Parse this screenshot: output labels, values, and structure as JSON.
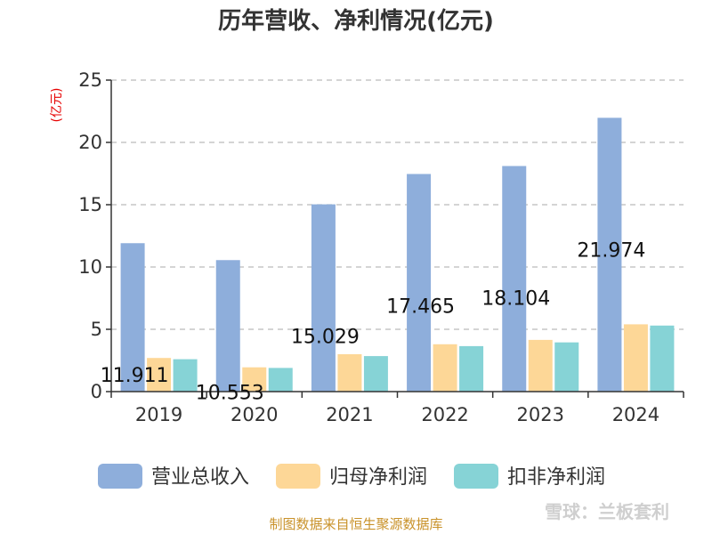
{
  "chart_data": {
    "type": "bar",
    "title": "历年营收、净利情况(亿元)",
    "ylabel": "(亿元)",
    "categories": [
      "2019",
      "2020",
      "2021",
      "2022",
      "2023",
      "2024"
    ],
    "yticks": [
      "0",
      "5",
      "10",
      "15",
      "20",
      "25"
    ],
    "ylim": [
      0,
      25
    ],
    "grid": true,
    "legend_position": "bottom",
    "series": [
      {
        "name": "营业总收入",
        "color": "#8eaedb",
        "values": [
          11.911,
          10.553,
          15.029,
          17.465,
          18.104,
          21.974
        ],
        "labels": [
          "11.911",
          "10.553",
          "15.029",
          "17.465",
          "18.104",
          "21.974"
        ]
      },
      {
        "name": "归母净利润",
        "color": "#fdd797",
        "values": [
          2.7,
          1.95,
          3.0,
          3.8,
          4.15,
          5.4
        ]
      },
      {
        "name": "扣非净利润",
        "color": "#86d3d6",
        "values": [
          2.6,
          1.9,
          2.85,
          3.65,
          3.95,
          5.3
        ]
      }
    ]
  },
  "source": "制图数据来自恒生聚源数据库",
  "watermark": "雪球：兰板套利"
}
